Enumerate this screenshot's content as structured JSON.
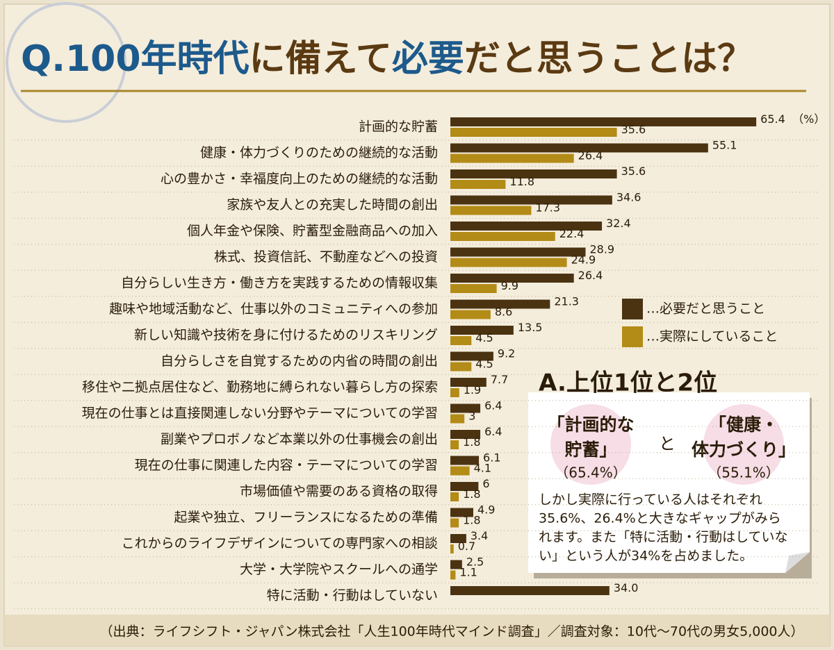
{
  "chart_data": {
    "type": "grouped-hbar",
    "title_parts": [
      "Q.100年時代",
      "に備えて",
      "必要",
      "だと思うことは？"
    ],
    "categories": [
      "計画的な貯蓄",
      "健康・体力づくりのための継続的な活動",
      "心の豊かさ・幸福度向上のための継続的な活動",
      "家族や友人との充実した時間の創出",
      "個人年金や保険、貯蓄型金融商品への加入",
      "株式、投資信託、不動産などへの投資",
      "自分らしい生き方・働き方を実践するための情報収集",
      "趣味や地域活動など、仕事以外のコミュニティへの参加",
      "新しい知識や技術を身に付けるためのリスキリング",
      "自分らしさを自覚するための内省の時間の創出",
      "移住や二拠点居住など、勤務地に縛られない暮らし方の探索",
      "現在の仕事とは直接関連しない分野やテーマについての学習",
      "副業やプロボノなど本業以外の仕事機会の創出",
      "現在の仕事に関連した内容・テーマについての学習",
      "市場価値や需要のある資格の取得",
      "起業や独立、フリーランスになるための準備",
      "これからのライフデザインについての専門家への相談",
      "大学・大学院やスクールへの通学",
      "特に活動・行動はしていない"
    ],
    "series": [
      {
        "name": "…必要だと思うこと",
        "color": "#4b3312",
        "values": [
          65.4,
          55.1,
          35.6,
          34.6,
          32.4,
          28.9,
          26.4,
          21.3,
          13.5,
          9.2,
          7.7,
          6.4,
          6.4,
          6.1,
          6,
          4.9,
          3.4,
          2.5,
          34
        ],
        "value_labels": [
          null,
          null,
          null,
          null,
          null,
          null,
          null,
          null,
          null,
          null,
          null,
          null,
          null,
          null,
          null,
          null,
          null,
          null,
          "34.0"
        ]
      },
      {
        "name": "…実際にしていること",
        "color": "#b38b17",
        "values": [
          35.6,
          26.4,
          11.8,
          17.3,
          22.4,
          24.9,
          9.9,
          8.6,
          4.5,
          4.5,
          1.9,
          3,
          1.8,
          4.1,
          1.8,
          1.8,
          0.7,
          1.1,
          null
        ]
      }
    ],
    "unit_label": "（%）",
    "callout": {
      "title": "A.上位1位と2位",
      "items": [
        {
          "lines": [
            "「計画的な",
            "貯蓄」"
          ],
          "value": "（65.4%）"
        },
        {
          "lines": [
            "「健康・",
            "体力づくり」"
          ],
          "value": "（55.1%）"
        }
      ],
      "connector": "と",
      "body_lines": [
        "しかし実際に行っている人はそれぞれ",
        "35.6%、26.4%と大きなギャップがみら",
        "れます。また「特に活動・行動はしていな",
        "い」という人が34%を占めました。"
      ]
    },
    "source": "（出典：ライフシフト・ジャパン株式会社「人生100年時代マインド調査」／調査対象：10代〜70代の男女5,000人）"
  }
}
